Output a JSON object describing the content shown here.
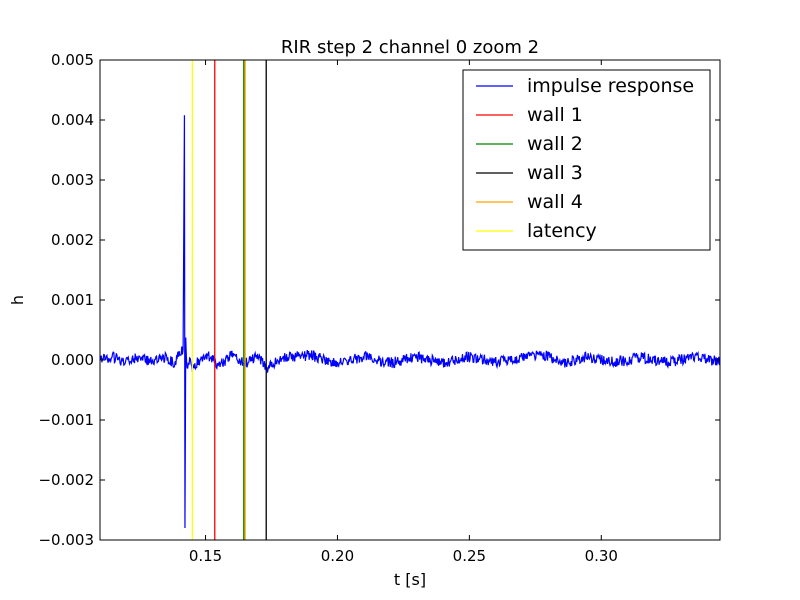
{
  "chart_data": {
    "type": "line",
    "title": "RIR step 2 channel 0 zoom 2",
    "xlabel": "t [s]",
    "ylabel": "h",
    "xlim": [
      0.11,
      0.345
    ],
    "ylim": [
      -0.003,
      0.005
    ],
    "xticks": [
      0.15,
      0.2,
      0.25,
      0.3
    ],
    "xtick_labels": [
      "0.15",
      "0.20",
      "0.25",
      "0.30"
    ],
    "yticks": [
      -0.003,
      -0.002,
      -0.001,
      0.0,
      0.001,
      0.002,
      0.003,
      0.004,
      0.005
    ],
    "ytick_labels": [
      "−0.003",
      "−0.002",
      "−0.001",
      "0.000",
      "0.001",
      "0.002",
      "0.003",
      "0.004",
      "0.005"
    ],
    "grid": false,
    "legend": "top-right",
    "series": [
      {
        "name": "impulse response",
        "color": "#0000ff",
        "points": [
          [
            0.11,
            0.0
          ],
          [
            0.115,
            5e-05
          ],
          [
            0.12,
            -4e-05
          ],
          [
            0.125,
            6e-05
          ],
          [
            0.13,
            -5e-05
          ],
          [
            0.135,
            4e-05
          ],
          [
            0.138,
            -6e-05
          ],
          [
            0.14,
            0.0001
          ],
          [
            0.1415,
            0.0002
          ],
          [
            0.142,
            0.00408
          ],
          [
            0.1422,
            -0.0028
          ],
          [
            0.1425,
            0.0003
          ],
          [
            0.143,
            -0.0002
          ],
          [
            0.144,
            8e-05
          ],
          [
            0.145,
            -0.00012
          ],
          [
            0.15,
            0.0001
          ],
          [
            0.155,
            -8e-05
          ],
          [
            0.16,
            7e-05
          ],
          [
            0.165,
            -6e-05
          ],
          [
            0.17,
            6e-05
          ],
          [
            0.173,
            -0.00014
          ],
          [
            0.18,
            5e-05
          ],
          [
            0.19,
            8e-05
          ],
          [
            0.2,
            -5e-05
          ],
          [
            0.21,
            6e-05
          ],
          [
            0.22,
            -5e-05
          ],
          [
            0.23,
            5e-05
          ],
          [
            0.24,
            -5e-05
          ],
          [
            0.25,
            5e-05
          ],
          [
            0.26,
            -4e-05
          ],
          [
            0.27,
            5e-05
          ],
          [
            0.278,
            9e-05
          ],
          [
            0.285,
            -5e-05
          ],
          [
            0.295,
            5e-05
          ],
          [
            0.305,
            -4e-05
          ],
          [
            0.315,
            4e-05
          ],
          [
            0.325,
            -4e-05
          ],
          [
            0.335,
            5e-05
          ],
          [
            0.345,
            -3e-05
          ]
        ]
      },
      {
        "name": "wall 1",
        "color": "#ff0000",
        "x": 0.1535
      },
      {
        "name": "wall 2",
        "color": "#008000",
        "x": 0.1645
      },
      {
        "name": "wall 3",
        "color": "#000000",
        "x": 0.173
      },
      {
        "name": "wall 4",
        "color": "#ffa500",
        "x": 0.165
      },
      {
        "name": "latency",
        "color": "#ffff00",
        "x": 0.145
      }
    ]
  }
}
